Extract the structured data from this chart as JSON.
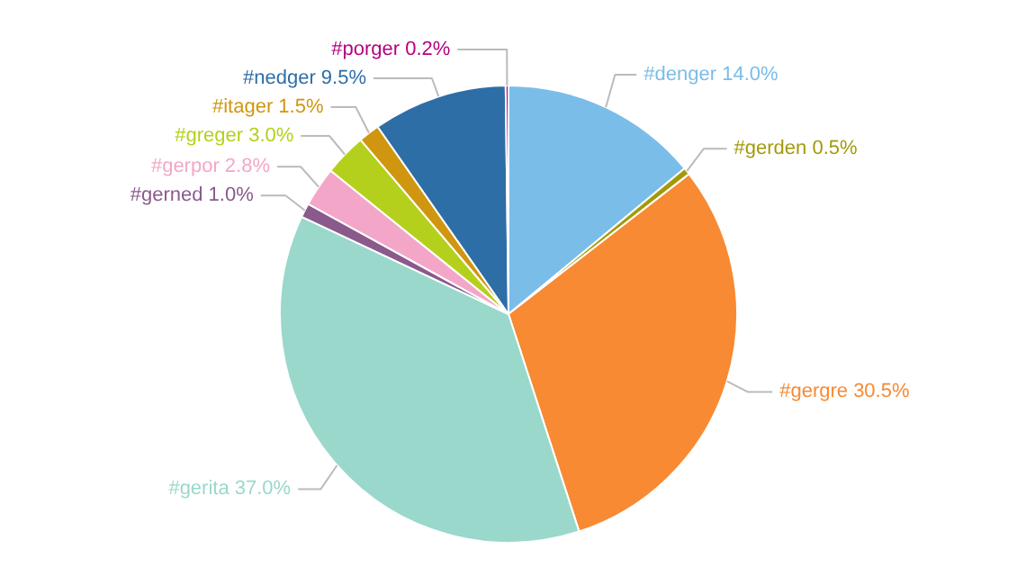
{
  "chart_data": {
    "type": "pie",
    "categories": [
      "#denger",
      "#gerden",
      "#gergre",
      "#gerita",
      "#gerned",
      "#gerpor",
      "#greger",
      "#itager",
      "#nedger",
      "#porger"
    ],
    "values": [
      14.0,
      0.5,
      30.5,
      37.0,
      1.0,
      2.8,
      3.0,
      1.5,
      9.5,
      0.2
    ],
    "value_labels": [
      "14.0%",
      "0.5%",
      "30.5%",
      "37.0%",
      "1.0%",
      "2.8%",
      "3.0%",
      "1.5%",
      "9.5%",
      "0.2%"
    ],
    "colors": [
      "#7bbde9",
      "#a39a0a",
      "#f78a33",
      "#9ad8cc",
      "#8a5a8c",
      "#f4a6c8",
      "#b5d01c",
      "#d0960f",
      "#2e6ea6",
      "#b5007f"
    ]
  }
}
